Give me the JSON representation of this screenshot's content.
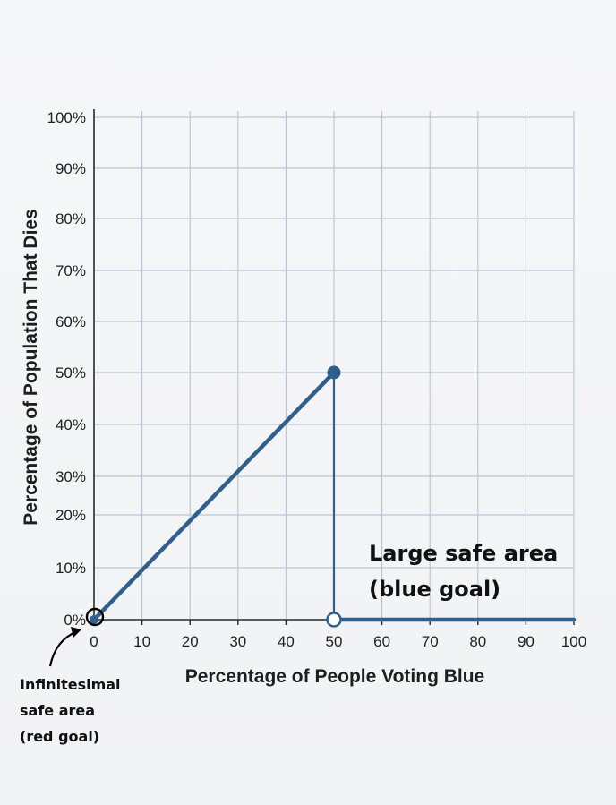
{
  "chart_data": {
    "type": "line",
    "xlabel": "Percentage of People Voting Blue",
    "ylabel": "Percentage of Population That Dies",
    "xlim": [
      0,
      100
    ],
    "ylim": [
      0,
      100
    ],
    "x_ticks": [
      0,
      10,
      20,
      30,
      40,
      50,
      60,
      70,
      80,
      90,
      100
    ],
    "x_tick_labels": [
      "0",
      "10",
      "20",
      "30",
      "40",
      "50",
      "60",
      "70",
      "80",
      "90",
      "100"
    ],
    "y_ticks": [
      0,
      10,
      20,
      30,
      40,
      50,
      60,
      70,
      80,
      90,
      100
    ],
    "y_tick_labels": [
      "0%",
      "10%",
      "20%",
      "30%",
      "40%",
      "50%",
      "60%",
      "70%",
      "80%",
      "90%",
      "100%"
    ],
    "grid": true,
    "series": [
      {
        "name": "deaths-rising",
        "x": [
          0,
          50
        ],
        "y": [
          0,
          50
        ]
      },
      {
        "name": "deaths-zero",
        "x": [
          50,
          100
        ],
        "y": [
          0,
          0
        ]
      }
    ],
    "points": [
      {
        "name": "peak",
        "x": 50,
        "y": 50,
        "filled": true
      },
      {
        "name": "origin",
        "x": 0,
        "y": 0,
        "filled": true
      },
      {
        "name": "jump-open",
        "x": 50,
        "y": 0,
        "filled": false
      }
    ],
    "annotations": {
      "blue_goal": [
        "Large safe area",
        "(blue goal)"
      ],
      "red_goal": [
        "Infinitesimal",
        "safe area",
        "(red goal)"
      ]
    },
    "colors": {
      "line": "#2f5f8c",
      "grid": "#b9c8d6",
      "axis": "#2a2a2a"
    }
  }
}
